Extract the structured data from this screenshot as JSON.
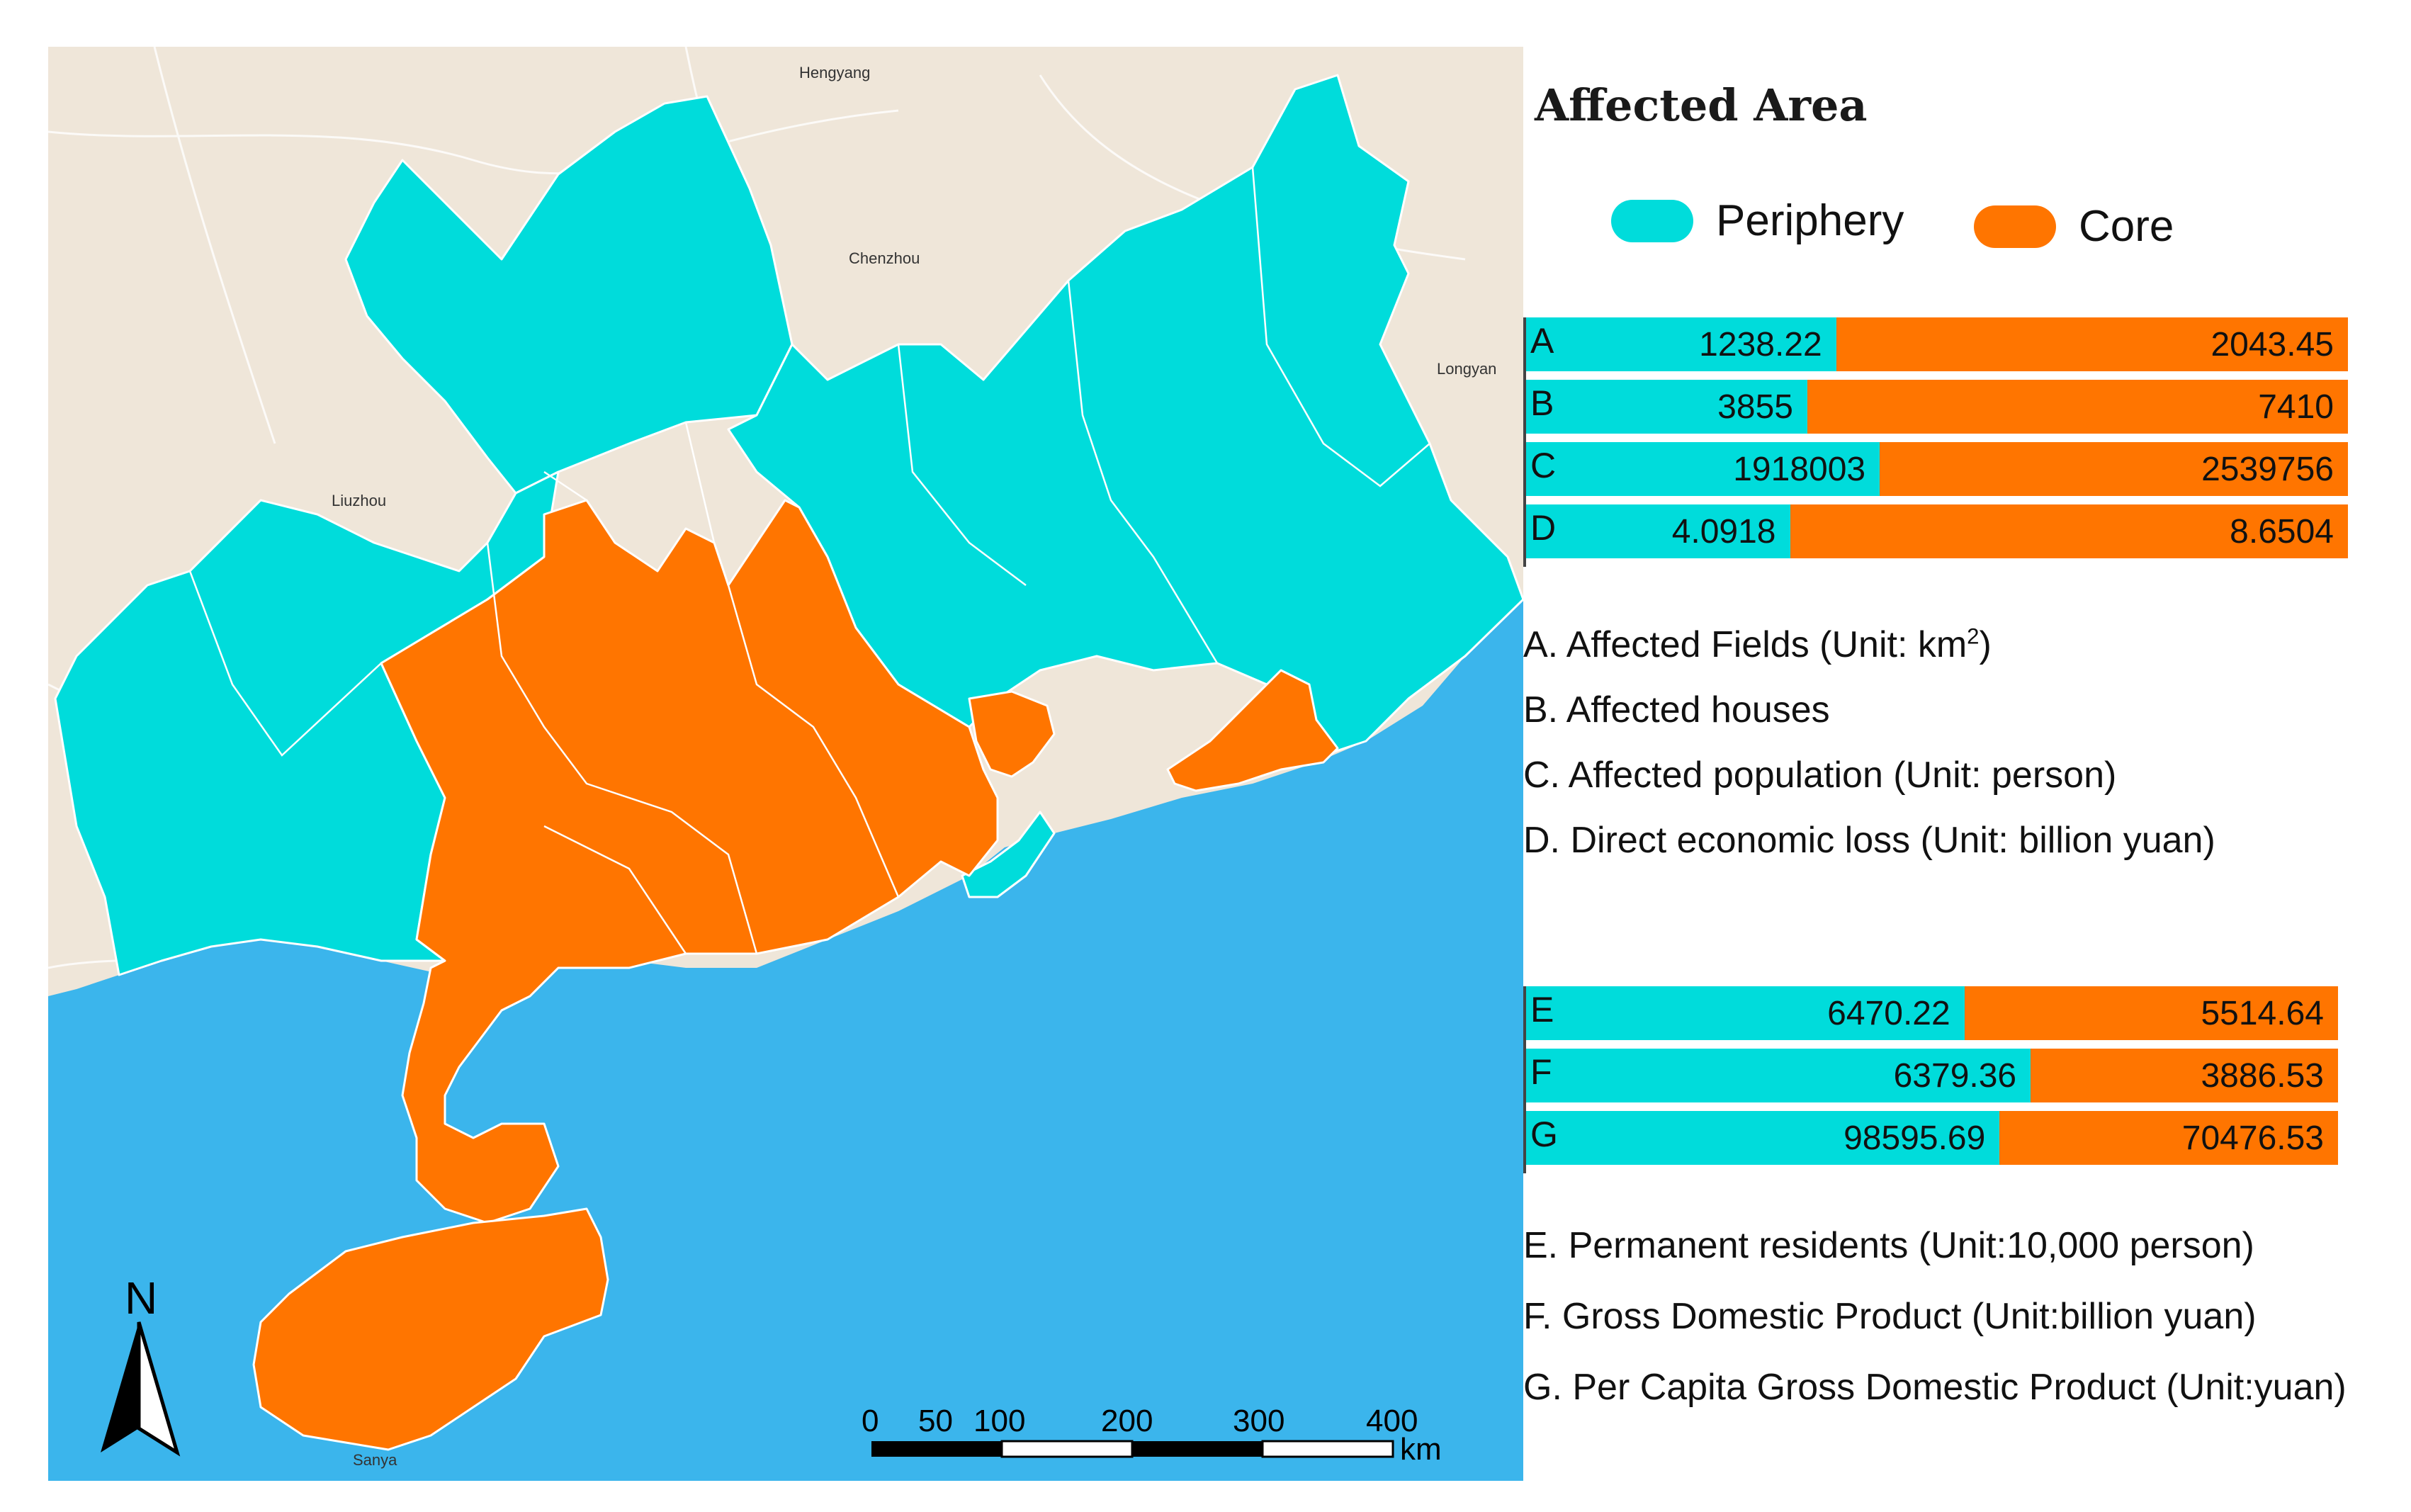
{
  "colors": {
    "periphery": "#00dcdb",
    "core": "#ff7500",
    "sea": "#3bb5ec",
    "land": "#efe6d9"
  },
  "title": "Affected Area",
  "legend": {
    "periphery": "Periphery",
    "core": "Core"
  },
  "cities": [
    "Hengyang",
    "Chenzhou",
    "Longyan",
    "Liuzhou",
    "Sanya"
  ],
  "north_label": "N",
  "scale": {
    "ticks": [
      "0",
      "50",
      "100",
      "200",
      "300",
      "400"
    ],
    "unit": "km"
  },
  "rows_top": [
    {
      "label": "A",
      "periphery": "1238.22",
      "core": "2043.45",
      "p": 1238.22,
      "c": 2043.45
    },
    {
      "label": "B",
      "periphery": "3855",
      "core": "7410",
      "p": 3855,
      "c": 7410
    },
    {
      "label": "C",
      "periphery": "1918003",
      "core": "2539756",
      "p": 1918003,
      "c": 2539756
    },
    {
      "label": "D",
      "periphery": "4.0918",
      "core": "8.6504",
      "p": 4.0918,
      "c": 8.6504
    }
  ],
  "desc_top": [
    {
      "text": "A. Affected Fields (Unit: km",
      "sup": "2",
      "tail": ")"
    },
    {
      "text": "B. Affected houses"
    },
    {
      "text": "C. Affected population (Unit: person)"
    },
    {
      "text": "D. Direct economic loss (Unit: billion yuan)"
    }
  ],
  "rows_bottom": [
    {
      "label": "E",
      "periphery": "6470.22",
      "core": "5514.64",
      "p": 6470.22,
      "c": 5514.64
    },
    {
      "label": "F",
      "periphery": "6379.36",
      "core": "3886.53",
      "p": 6379.36,
      "c": 3886.53
    },
    {
      "label": "G",
      "periphery": "98595.69",
      "core": "70476.53",
      "p": 98595.69,
      "c": 70476.53
    }
  ],
  "desc_bottom": [
    {
      "text": "E. Permanent residents (Unit:10,000 person)"
    },
    {
      "text": "F. Gross Domestic Product (Unit:billion yuan)"
    },
    {
      "text": "G. Per Capita Gross Domestic Product (Unit:yuan)"
    }
  ]
}
